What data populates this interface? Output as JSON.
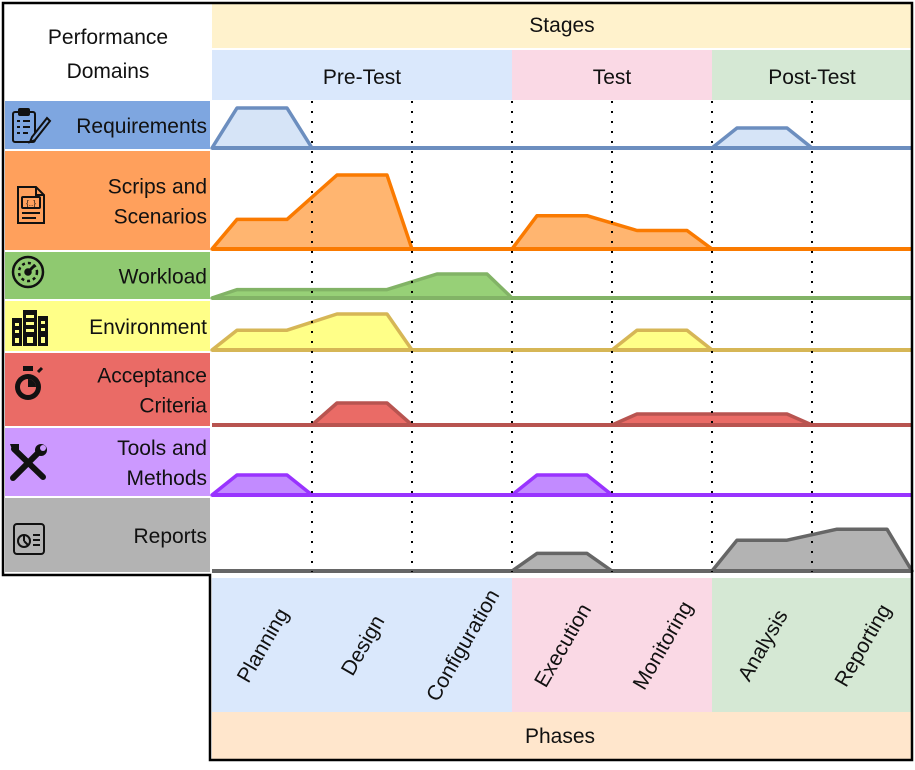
{
  "header": {
    "domains_line1": "Performance",
    "domains_line2": "Domains",
    "stages_title": "Stages",
    "phases_title": "Phases"
  },
  "stages": [
    {
      "label": "Pre-Test",
      "color": "#dae8fc",
      "phases": 3
    },
    {
      "label": "Test",
      "color": "#fad9e5",
      "phases": 2
    },
    {
      "label": "Post-Test",
      "color": "#d5e8d4",
      "phases": 2
    }
  ],
  "phases": [
    {
      "label": "Planning",
      "stage": 0
    },
    {
      "label": "Design",
      "stage": 0
    },
    {
      "label": "Configuration",
      "stage": 0
    },
    {
      "label": "Execution",
      "stage": 1
    },
    {
      "label": "Monitoring",
      "stage": 1
    },
    {
      "label": "Analysis",
      "stage": 2
    },
    {
      "label": "Reporting",
      "stage": 2
    }
  ],
  "colors": {
    "stages_header": "#fff2cc",
    "phases_footer": "#ffe6cc",
    "border": "#000000",
    "divider": "#000000"
  },
  "domains": [
    {
      "lines": [
        "Requirements"
      ],
      "icon": "clipboard-checklist-icon",
      "bg": "#7ea6e0",
      "line": "#6c8ebf",
      "fill": "#d6e4f7",
      "shapes": [
        [
          [
            0,
            0
          ],
          [
            0.25,
            1
          ],
          [
            0.75,
            1
          ],
          [
            1,
            0
          ]
        ],
        [
          [
            5,
            0
          ],
          [
            5.25,
            0.5
          ],
          [
            5.75,
            0.5
          ],
          [
            6,
            0
          ]
        ]
      ]
    },
    {
      "lines": [
        "Scrips and",
        "Scenarios"
      ],
      "icon": "script-document-icon",
      "bg": "#ffa05c",
      "line": "#fa7a00",
      "fill": "#ffb570",
      "shapes": [
        [
          [
            0,
            0
          ],
          [
            0.25,
            0.4
          ],
          [
            0.75,
            0.4
          ],
          [
            1.25,
            1
          ],
          [
            1.75,
            1
          ],
          [
            2,
            0
          ]
        ],
        [
          [
            3,
            0
          ],
          [
            3.25,
            0.45
          ],
          [
            3.75,
            0.45
          ],
          [
            4.25,
            0.25
          ],
          [
            4.75,
            0.25
          ],
          [
            5,
            0
          ]
        ]
      ]
    },
    {
      "lines": [
        "Workload"
      ],
      "icon": "speedometer-icon",
      "bg": "#8fc970",
      "line": "#82b366",
      "fill": "#97d077",
      "shapes": [
        [
          [
            0,
            0
          ],
          [
            0.25,
            0.35
          ],
          [
            1.75,
            0.35
          ],
          [
            2.25,
            1
          ],
          [
            2.75,
            1
          ],
          [
            3,
            0
          ]
        ]
      ]
    },
    {
      "lines": [
        "Environment"
      ],
      "icon": "server-building-icon",
      "bg": "#ffff88",
      "line": "#d6b656",
      "fill": "#ffff88",
      "shapes": [
        [
          [
            0,
            0
          ],
          [
            0.25,
            0.55
          ],
          [
            0.75,
            0.55
          ],
          [
            1.25,
            1
          ],
          [
            1.75,
            1
          ],
          [
            2,
            0
          ]
        ],
        [
          [
            4,
            0
          ],
          [
            4.25,
            0.55
          ],
          [
            4.75,
            0.55
          ],
          [
            5,
            0
          ]
        ]
      ]
    },
    {
      "lines": [
        "Acceptance",
        "Criteria"
      ],
      "icon": "stopwatch-icon",
      "bg": "#ea6b66",
      "line": "#b85450",
      "fill": "#ea6b66",
      "shapes": [
        [
          [
            1,
            0
          ],
          [
            1.25,
            1
          ],
          [
            1.75,
            1
          ],
          [
            2,
            0
          ]
        ],
        [
          [
            4,
            0
          ],
          [
            4.25,
            0.5
          ],
          [
            5.75,
            0.5
          ],
          [
            6,
            0
          ]
        ]
      ]
    },
    {
      "lines": [
        "Tools and",
        "Methods"
      ],
      "icon": "wrench-screwdriver-icon",
      "bg": "#cc99ff",
      "line": "#9933ff",
      "fill": "#c28bff",
      "shapes": [
        [
          [
            0,
            0
          ],
          [
            0.25,
            1
          ],
          [
            0.75,
            1
          ],
          [
            1,
            0
          ]
        ],
        [
          [
            3,
            0
          ],
          [
            3.25,
            1
          ],
          [
            3.75,
            1
          ],
          [
            4,
            0
          ]
        ]
      ]
    },
    {
      "lines": [
        "Reports"
      ],
      "icon": "report-chart-icon",
      "bg": "#b3b3b3",
      "line": "#666666",
      "fill": "#b3b3b3",
      "shapes": [
        [
          [
            3,
            0
          ],
          [
            3.25,
            0.4
          ],
          [
            3.75,
            0.4
          ],
          [
            4,
            0
          ]
        ],
        [
          [
            5,
            0
          ],
          [
            5.25,
            0.7
          ],
          [
            5.75,
            0.7
          ],
          [
            6.25,
            0.95
          ],
          [
            6.75,
            0.95
          ],
          [
            7,
            0
          ]
        ]
      ]
    }
  ]
}
